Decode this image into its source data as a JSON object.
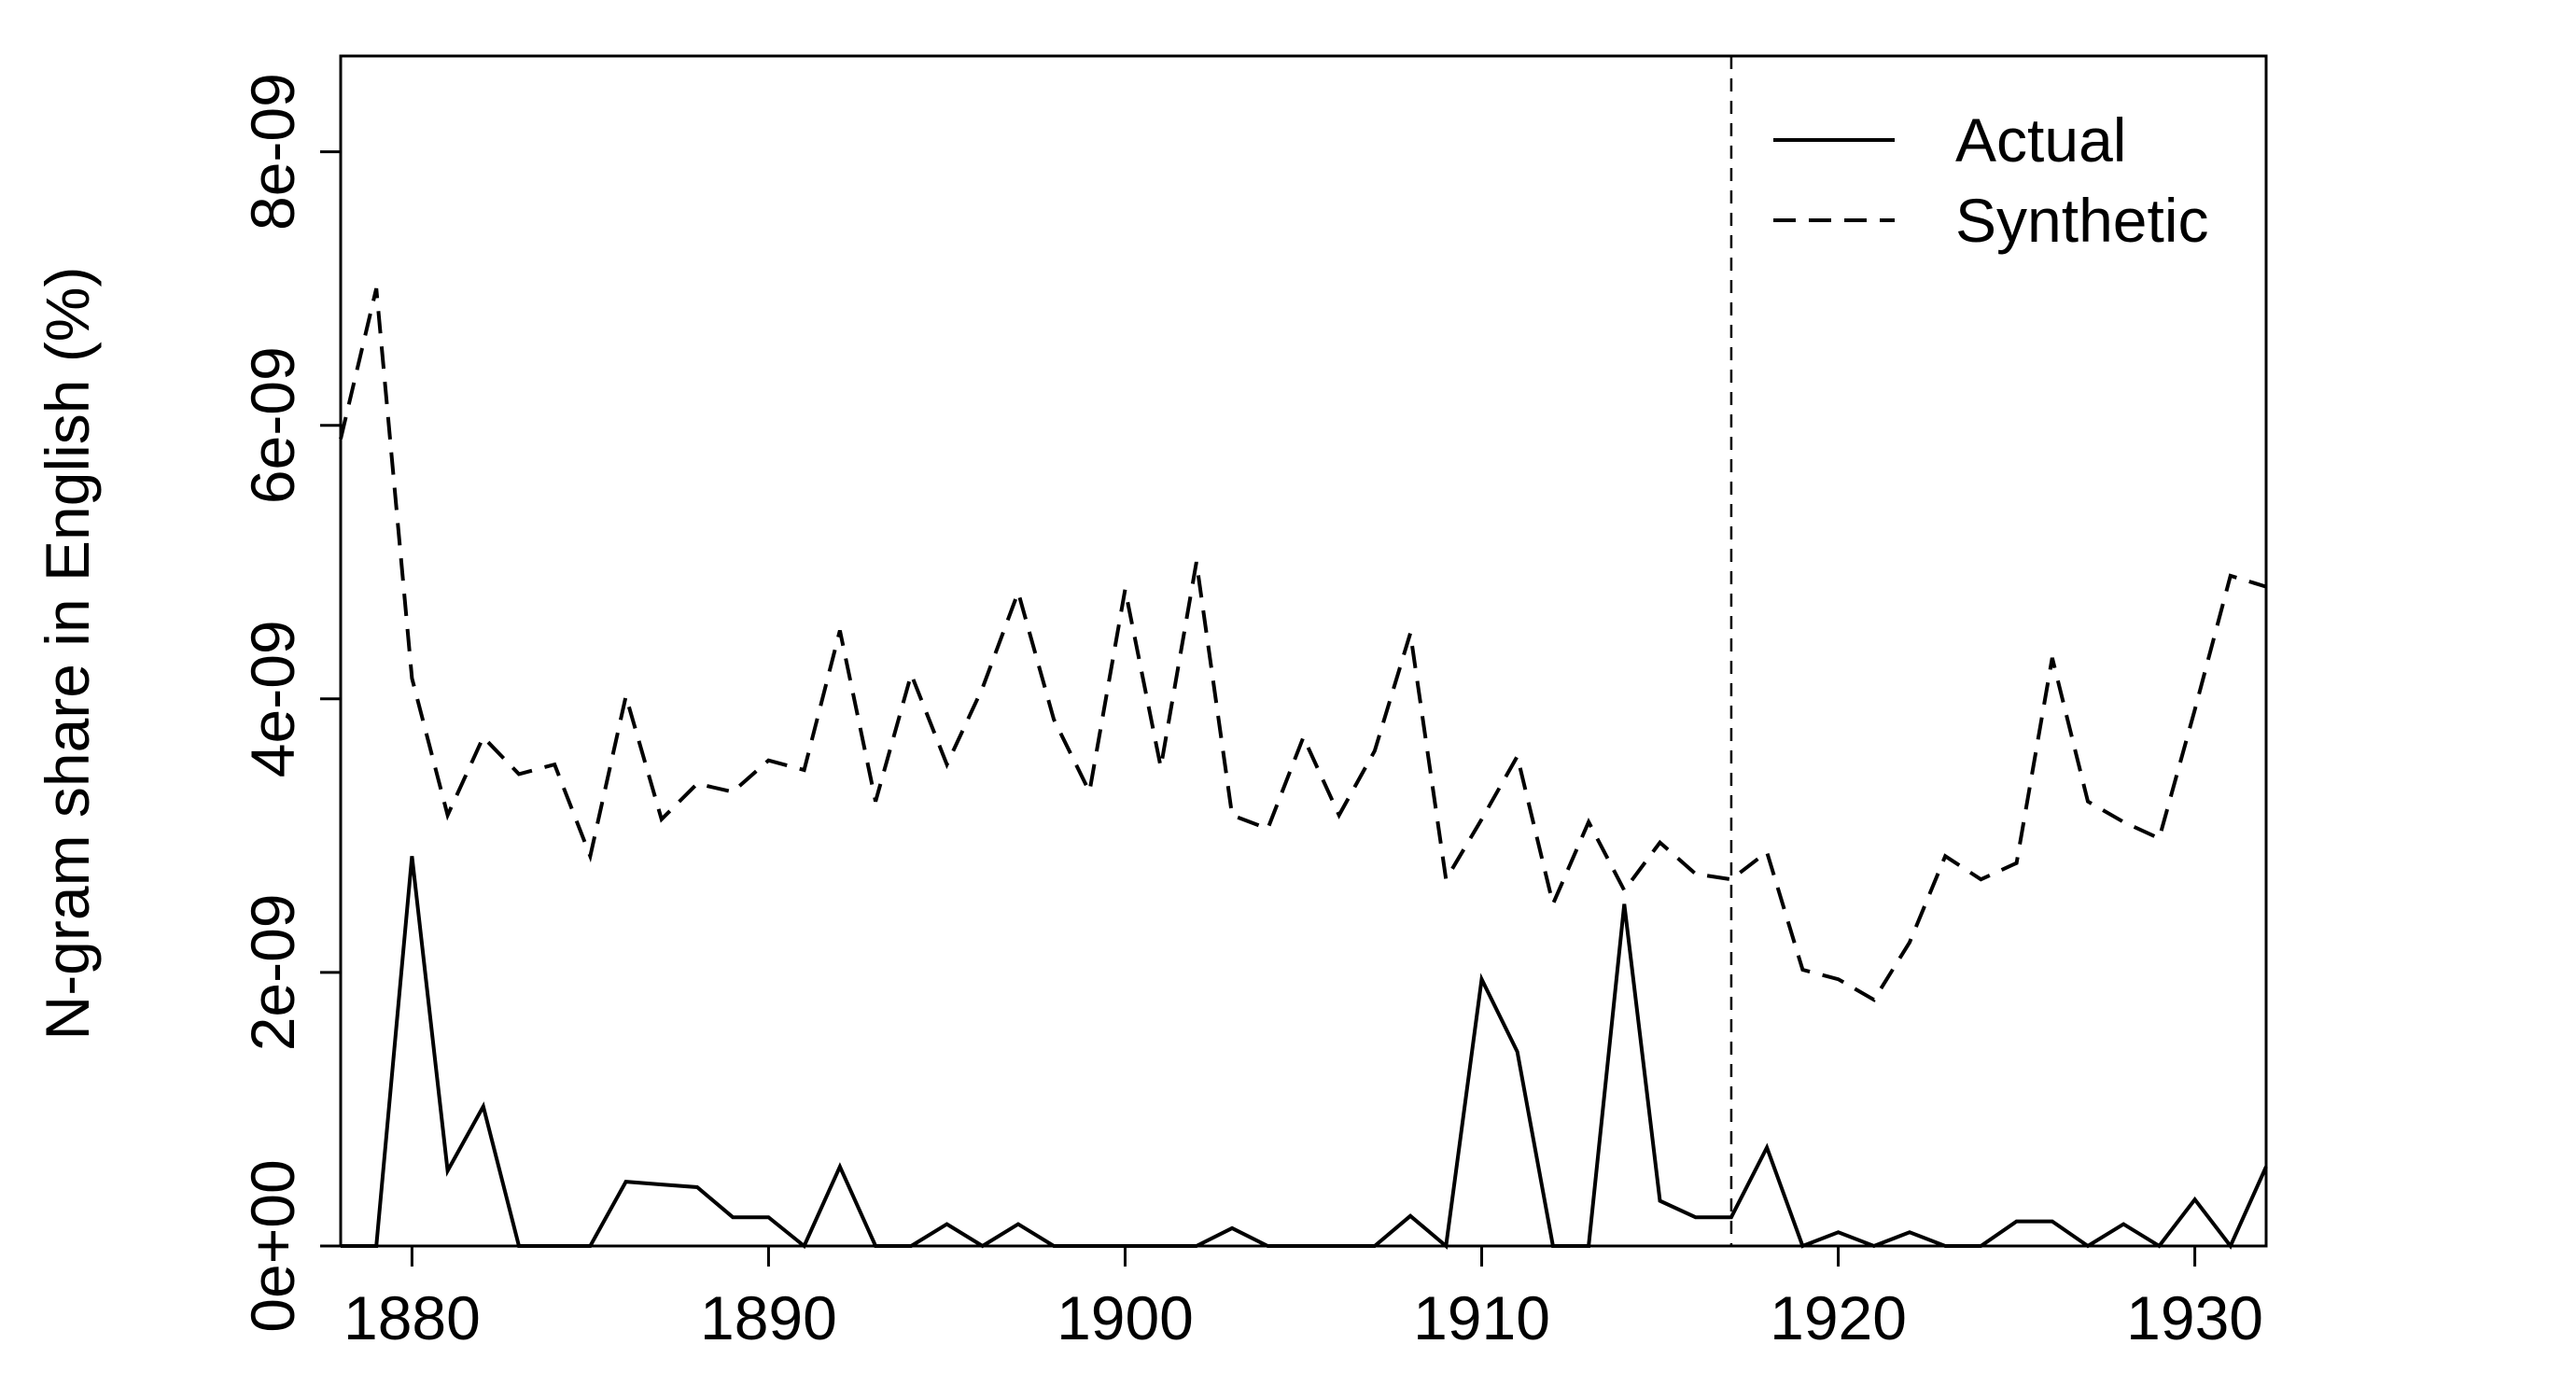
{
  "chart_data": {
    "type": "line",
    "title": "",
    "xlabel": "",
    "ylabel": "N-gram share in English (%)",
    "xlim": [
      1878,
      1932
    ],
    "ylim": [
      0,
      8.7e-09
    ],
    "xticks": [
      1880,
      1890,
      1900,
      1910,
      1920,
      1930
    ],
    "yticks": [
      0,
      2e-09,
      4e-09,
      6e-09,
      8e-09
    ],
    "ytick_labels": [
      "0e+00",
      "2e-09",
      "4e-09",
      "6e-09",
      "8e-09"
    ],
    "grid": false,
    "legend_position": "top-right",
    "treatment_year": 1917,
    "x": [
      1878,
      1879,
      1880,
      1881,
      1882,
      1883,
      1884,
      1885,
      1886,
      1887,
      1888,
      1889,
      1890,
      1891,
      1892,
      1893,
      1894,
      1895,
      1896,
      1897,
      1898,
      1899,
      1900,
      1901,
      1902,
      1903,
      1904,
      1905,
      1906,
      1907,
      1908,
      1909,
      1910,
      1911,
      1912,
      1913,
      1914,
      1915,
      1916,
      1917,
      1918,
      1919,
      1920,
      1921,
      1922,
      1923,
      1924,
      1925,
      1926,
      1927,
      1928,
      1929,
      1930,
      1931,
      1932
    ],
    "series": [
      {
        "name": "Actual",
        "style": "solid",
        "values": [
          0,
          0,
          2.85e-09,
          5.5e-10,
          1.02e-09,
          0,
          0,
          0,
          4.7e-10,
          4.5e-10,
          4.3e-10,
          2.1e-10,
          2.1e-10,
          0,
          5.8e-10,
          0,
          0,
          1.6e-10,
          0,
          1.6e-10,
          0,
          0,
          0,
          0,
          0,
          1.3e-10,
          0,
          0,
          0,
          0,
          2.2e-10,
          0,
          1.95e-09,
          1.42e-09,
          0,
          0,
          2.5e-09,
          3.3e-10,
          2.1e-10,
          2.1e-10,
          7.2e-10,
          0,
          1e-10,
          0,
          1e-10,
          0,
          0,
          1.8e-10,
          1.8e-10,
          0,
          1.6e-10,
          0,
          3.4e-10,
          0,
          5.8e-10
        ]
      },
      {
        "name": "Synthetic",
        "style": "dashed",
        "values": [
          5.9e-09,
          7e-09,
          4.15e-09,
          3.15e-09,
          3.72e-09,
          3.45e-09,
          3.52e-09,
          2.85e-09,
          4.02e-09,
          3.12e-09,
          3.38e-09,
          3.32e-09,
          3.55e-09,
          3.48e-09,
          4.5e-09,
          3.25e-09,
          4.18e-09,
          3.52e-09,
          4.08e-09,
          4.78e-09,
          3.85e-09,
          3.32e-09,
          4.8e-09,
          3.5e-09,
          5e-09,
          3.15e-09,
          3.05e-09,
          3.72e-09,
          3.15e-09,
          3.62e-09,
          4.48e-09,
          2.68e-09,
          3.12e-09,
          3.58e-09,
          2.5e-09,
          3.1e-09,
          2.6e-09,
          2.95e-09,
          2.72e-09,
          2.68e-09,
          2.88e-09,
          2.02e-09,
          1.95e-09,
          1.8e-09,
          2.22e-09,
          2.85e-09,
          2.68e-09,
          2.8e-09,
          4.3e-09,
          3.25e-09,
          3.1e-09,
          2.98e-09,
          3.92e-09,
          4.9e-09,
          4.82e-09
        ]
      }
    ]
  }
}
